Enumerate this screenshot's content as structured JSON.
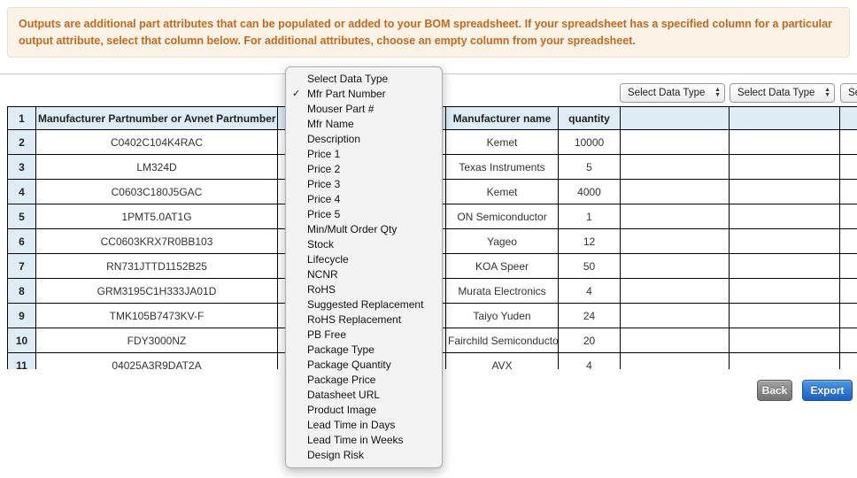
{
  "banner": {
    "text": "Outputs are additional part attributes that can be populated or added to your BOM spreadsheet. If your spreadsheet has a specified column for a particular output attribute, select that column below. For additional attributes, choose an empty column from your spreadsheet."
  },
  "column_selects": {
    "placeholder": "Select Data Type"
  },
  "dropdown_menu": {
    "checkmark": "✓",
    "checked_item": "Mfr Part Number",
    "items": [
      "Select Data Type",
      "Mfr Part Number",
      "Mouser Part #",
      "Mfr Name",
      "Description",
      "Price 1",
      "Price 2",
      "Price 3",
      "Price 4",
      "Price 5",
      "Min/Mult Order Qty",
      "Stock",
      "Lifecycle",
      "NCNR",
      "RoHS",
      "Suggested Replacement",
      "RoHS Replacement",
      "PB Free",
      "Package Type",
      "Package Quantity",
      "Package Price",
      "Datasheet URL",
      "Product Image",
      "Lead Time in Days",
      "Lead Time in Weeks",
      "Design Risk"
    ]
  },
  "table": {
    "header_row_number": "1",
    "headers": {
      "part": "Manufacturer Partnumber or Avnet Partnumber",
      "manufacturer": "Manufacturer name",
      "quantity": "quantity"
    },
    "rows": [
      {
        "num": "2",
        "part": "C0402C104K4RAC",
        "manufacturer": "Kemet",
        "quantity": "10000"
      },
      {
        "num": "3",
        "part": "LM324D",
        "manufacturer": "Texas Instruments",
        "quantity": "5"
      },
      {
        "num": "4",
        "part": "C0603C180J5GAC",
        "manufacturer": "Kemet",
        "quantity": "4000"
      },
      {
        "num": "5",
        "part": "1PMT5.0AT1G",
        "manufacturer": "ON Semiconductor",
        "quantity": "1"
      },
      {
        "num": "6",
        "part": "CC0603KRX7R0BB103",
        "manufacturer": "Yageo",
        "quantity": "12"
      },
      {
        "num": "7",
        "part": "RN731JTTD1152B25",
        "manufacturer": "KOA Speer",
        "quantity": "50"
      },
      {
        "num": "8",
        "part": "GRM3195C1H333JA01D",
        "manufacturer": "Murata Electronics",
        "quantity": "4"
      },
      {
        "num": "9",
        "part": "TMK105B7473KV-F",
        "manufacturer": "Taiyo Yuden",
        "quantity": "24"
      },
      {
        "num": "10",
        "part": "FDY3000NZ",
        "manufacturer": "Fairchild Semiconductor",
        "quantity": "20"
      },
      {
        "num": "11",
        "part": "04025A3R9DAT2A",
        "manufacturer": "AVX",
        "quantity": "4"
      }
    ]
  },
  "buttons": {
    "back": "Back",
    "export": "Export"
  },
  "colors": {
    "banner_text": "#c8681e",
    "banner_bg": "#faf3e6",
    "table_header_bg": "#ddecf5",
    "export_button_blue": "#1b5fc4",
    "back_button_gray": "#737373"
  }
}
